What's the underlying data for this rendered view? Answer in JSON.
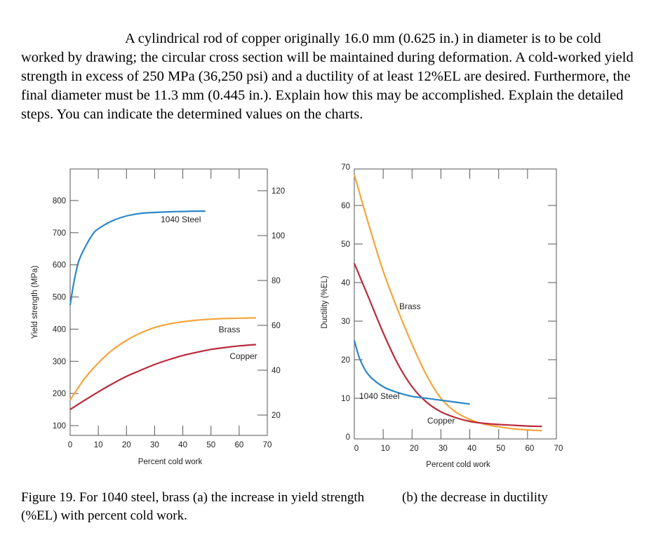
{
  "problem_text": "A cylindrical rod of copper originally 16.0 mm (0.625 in.) in diameter is to be cold worked by drawing; the circular cross section will be maintained during deformation.  A cold-worked yield strength in excess of 250 MPa (36,250 psi) and a ductility of at least 12%EL are desired. Furthermore, the final diameter must be 11.3 mm (0.445 in.).  Explain how this may be accomplished. Explain the detailed steps. You can indicate the determined values on the charts.",
  "caption_a": "Figure 19. For 1040 steel, brass (a) the increase in yield strength (%EL) with percent cold work.",
  "caption_b": "(b) the decrease in ductility",
  "colors": {
    "steel": "#2b87c8",
    "brass": "#f5a43a",
    "copper": "#b92b3b",
    "grid": "#555555"
  },
  "chart_data": [
    {
      "type": "line",
      "xlabel": "Percent cold work",
      "ylabel": "Yield strength (MPa)",
      "y2label": "",
      "xlim": [
        0,
        70
      ],
      "ylim": [
        100,
        850
      ],
      "xticks": [
        0,
        10,
        20,
        30,
        40,
        50,
        60,
        70
      ],
      "yticks": [
        100,
        200,
        300,
        400,
        500,
        600,
        700,
        800
      ],
      "y2ticks": [
        20,
        40,
        60,
        80,
        100,
        120
      ],
      "grid": true,
      "series": [
        {
          "name": "1040 Steel",
          "color_key": "steel",
          "x": [
            0,
            1,
            2,
            3,
            5,
            8,
            10,
            15,
            20,
            25,
            30,
            35,
            40,
            45,
            48
          ],
          "y": [
            475,
            530,
            575,
            610,
            650,
            695,
            712,
            737,
            752,
            760,
            763,
            765,
            766,
            767,
            767
          ]
        },
        {
          "name": "Brass",
          "color_key": "brass",
          "x": [
            0,
            5,
            10,
            15,
            20,
            25,
            30,
            35,
            40,
            45,
            50,
            55,
            60,
            66
          ],
          "y": [
            180,
            245,
            295,
            335,
            365,
            388,
            405,
            416,
            423,
            428,
            431,
            433,
            434,
            435
          ]
        },
        {
          "name": "Copper",
          "color_key": "copper",
          "x": [
            0,
            5,
            10,
            15,
            20,
            25,
            30,
            35,
            40,
            45,
            50,
            55,
            60,
            66
          ],
          "y": [
            150,
            178,
            205,
            230,
            253,
            272,
            290,
            305,
            318,
            328,
            337,
            343,
            348,
            352
          ]
        }
      ]
    },
    {
      "type": "line",
      "xlabel": "Percent cold work",
      "ylabel": "Ductility (%EL)",
      "xlim": [
        0,
        70
      ],
      "ylim": [
        0,
        70
      ],
      "xticks": [
        0,
        10,
        20,
        30,
        40,
        50,
        60,
        70
      ],
      "yticks": [
        0,
        10,
        20,
        30,
        40,
        50,
        60,
        70
      ],
      "grid": true,
      "series": [
        {
          "name": "Brass",
          "color_key": "brass",
          "x": [
            0,
            5,
            10,
            15,
            20,
            25,
            30,
            35,
            40,
            45,
            50,
            55,
            60,
            65
          ],
          "y": [
            68,
            55,
            43,
            33,
            24,
            16,
            10,
            6.5,
            4.5,
            3.3,
            2.6,
            2.1,
            1.8,
            1.6
          ]
        },
        {
          "name": "Copper",
          "color_key": "copper",
          "x": [
            0,
            5,
            10,
            15,
            20,
            25,
            30,
            35,
            40,
            45,
            50,
            55,
            60,
            65
          ],
          "y": [
            45,
            36,
            27,
            19,
            13,
            9,
            6.5,
            5,
            4,
            3.5,
            3.2,
            3,
            2.8,
            2.7
          ]
        },
        {
          "name": "1040 Steel",
          "color_key": "steel",
          "x": [
            0,
            2,
            5,
            10,
            15,
            20,
            25,
            30,
            35,
            40
          ],
          "y": [
            25,
            20,
            16,
            13,
            11.5,
            10.5,
            10,
            9.5,
            9,
            8.5
          ]
        }
      ]
    }
  ]
}
